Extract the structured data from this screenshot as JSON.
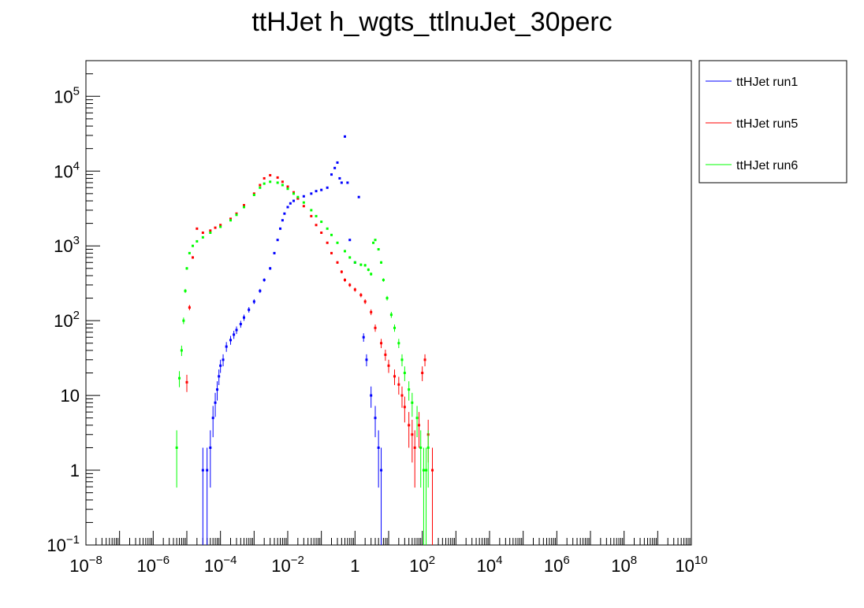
{
  "chart_data": {
    "type": "scatter",
    "title": "ttHJet h_wgts_ttlnuJet_30perc",
    "xlabel": "",
    "ylabel": "",
    "x_scale": "log",
    "y_scale": "log",
    "xlim": [
      1e-08,
      10000000000.0
    ],
    "ylim": [
      0.1,
      300000
    ],
    "grid": false,
    "legend_position": "top-right outside",
    "x_ticks": [
      {
        "base": "10",
        "exp": "−8"
      },
      {
        "base": "10",
        "exp": "−6"
      },
      {
        "base": "10",
        "exp": "−4"
      },
      {
        "base": "10",
        "exp": "−2"
      },
      {
        "base": "1",
        "exp": ""
      },
      {
        "base": "10",
        "exp": "2"
      },
      {
        "base": "10",
        "exp": "4"
      },
      {
        "base": "10",
        "exp": "6"
      },
      {
        "base": "10",
        "exp": "8"
      },
      {
        "base": "10",
        "exp": "10"
      }
    ],
    "y_ticks": [
      {
        "base": "10",
        "exp": "−1"
      },
      {
        "base": "1",
        "exp": ""
      },
      {
        "base": "10",
        "exp": ""
      },
      {
        "base": "10",
        "exp": "2"
      },
      {
        "base": "10",
        "exp": "3"
      },
      {
        "base": "10",
        "exp": "4"
      },
      {
        "base": "10",
        "exp": "5"
      }
    ],
    "series": [
      {
        "name": "ttHJet run1",
        "color": "#0000ff",
        "points": [
          [
            3e-05,
            1
          ],
          [
            4e-05,
            1
          ],
          [
            5e-05,
            2
          ],
          [
            6e-05,
            5
          ],
          [
            7e-05,
            8
          ],
          [
            8e-05,
            12
          ],
          [
            9e-05,
            18
          ],
          [
            0.0001,
            25
          ],
          [
            0.00012,
            30
          ],
          [
            0.00015,
            45
          ],
          [
            0.0002,
            55
          ],
          [
            0.00025,
            65
          ],
          [
            0.0003,
            75
          ],
          [
            0.0004,
            90
          ],
          [
            0.0005,
            110
          ],
          [
            0.0007,
            140
          ],
          [
            0.001,
            180
          ],
          [
            0.0015,
            250
          ],
          [
            0.002,
            350
          ],
          [
            0.003,
            500
          ],
          [
            0.004,
            800
          ],
          [
            0.005,
            1200
          ],
          [
            0.006,
            1700
          ],
          [
            0.007,
            2200
          ],
          [
            0.008,
            2700
          ],
          [
            0.01,
            3300
          ],
          [
            0.012,
            3700
          ],
          [
            0.015,
            4000
          ],
          [
            0.02,
            4300
          ],
          [
            0.03,
            4600
          ],
          [
            0.05,
            5000
          ],
          [
            0.07,
            5400
          ],
          [
            0.1,
            5600
          ],
          [
            0.15,
            6000
          ],
          [
            0.2,
            9000
          ],
          [
            0.25,
            11000
          ],
          [
            0.3,
            13000
          ],
          [
            0.35,
            8000
          ],
          [
            0.4,
            7000
          ],
          [
            0.5,
            29000
          ],
          [
            0.6,
            7000
          ],
          [
            0.7,
            1200
          ],
          [
            1,
            600
          ],
          [
            1.3,
            4500
          ],
          [
            1.8,
            60
          ],
          [
            2.2,
            30
          ],
          [
            3,
            10
          ],
          [
            4,
            5
          ],
          [
            5,
            2
          ],
          [
            6,
            1
          ]
        ]
      },
      {
        "name": "ttHJet run5",
        "color": "#ff0000",
        "points": [
          [
            1e-05,
            15
          ],
          [
            1.2e-05,
            150
          ],
          [
            1.5e-05,
            700
          ],
          [
            2e-05,
            1700
          ],
          [
            3e-05,
            1500
          ],
          [
            5e-05,
            1600
          ],
          [
            7e-05,
            1750
          ],
          [
            0.0001,
            1900
          ],
          [
            0.0002,
            2300
          ],
          [
            0.0003,
            2700
          ],
          [
            0.0005,
            3500
          ],
          [
            0.001,
            5000
          ],
          [
            0.0015,
            6500
          ],
          [
            0.002,
            8000
          ],
          [
            0.003,
            8800
          ],
          [
            0.005,
            8200
          ],
          [
            0.007,
            7200
          ],
          [
            0.01,
            6200
          ],
          [
            0.015,
            5200
          ],
          [
            0.02,
            4300
          ],
          [
            0.03,
            3400
          ],
          [
            0.05,
            2500
          ],
          [
            0.07,
            1900
          ],
          [
            0.1,
            1500
          ],
          [
            0.15,
            1100
          ],
          [
            0.2,
            800
          ],
          [
            0.3,
            600
          ],
          [
            0.4,
            450
          ],
          [
            0.5,
            350
          ],
          [
            0.7,
            300
          ],
          [
            1,
            260
          ],
          [
            1.5,
            220
          ],
          [
            2,
            180
          ],
          [
            3,
            130
          ],
          [
            4,
            80
          ],
          [
            6,
            50
          ],
          [
            8,
            35
          ],
          [
            10,
            25
          ],
          [
            15,
            18
          ],
          [
            20,
            14
          ],
          [
            25,
            10
          ],
          [
            30,
            7
          ],
          [
            40,
            4
          ],
          [
            50,
            3
          ],
          [
            60,
            2
          ],
          [
            80,
            4
          ],
          [
            100,
            20
          ],
          [
            120,
            30
          ],
          [
            150,
            3
          ],
          [
            200,
            1
          ]
        ]
      },
      {
        "name": "ttHJet run6",
        "color": "#00ff00",
        "points": [
          [
            5e-06,
            2
          ],
          [
            6e-06,
            17
          ],
          [
            7e-06,
            40
          ],
          [
            8e-06,
            100
          ],
          [
            9e-06,
            250
          ],
          [
            1e-05,
            500
          ],
          [
            1.2e-05,
            800
          ],
          [
            1.5e-05,
            1000
          ],
          [
            2e-05,
            1150
          ],
          [
            3e-05,
            1300
          ],
          [
            5e-05,
            1500
          ],
          [
            0.0001,
            1800
          ],
          [
            0.0002,
            2200
          ],
          [
            0.0003,
            2600
          ],
          [
            0.0005,
            3300
          ],
          [
            0.001,
            4800
          ],
          [
            0.0015,
            6000
          ],
          [
            0.002,
            6800
          ],
          [
            0.003,
            7200
          ],
          [
            0.005,
            7000
          ],
          [
            0.007,
            6500
          ],
          [
            0.01,
            5800
          ],
          [
            0.015,
            5000
          ],
          [
            0.02,
            4500
          ],
          [
            0.03,
            3800
          ],
          [
            0.05,
            3000
          ],
          [
            0.07,
            2500
          ],
          [
            0.1,
            2100
          ],
          [
            0.15,
            1700
          ],
          [
            0.2,
            1400
          ],
          [
            0.3,
            1100
          ],
          [
            0.5,
            850
          ],
          [
            0.7,
            700
          ],
          [
            1,
            600
          ],
          [
            1.5,
            560
          ],
          [
            2,
            550
          ],
          [
            2.5,
            480
          ],
          [
            3,
            420
          ],
          [
            3.5,
            1100
          ],
          [
            4,
            1200
          ],
          [
            5,
            900
          ],
          [
            6,
            600
          ],
          [
            7,
            350
          ],
          [
            9,
            200
          ],
          [
            12,
            120
          ],
          [
            15,
            80
          ],
          [
            20,
            50
          ],
          [
            25,
            30
          ],
          [
            30,
            20
          ],
          [
            40,
            12
          ],
          [
            50,
            8
          ],
          [
            70,
            5
          ],
          [
            90,
            2
          ],
          [
            110,
            1
          ],
          [
            130,
            1
          ],
          [
            150,
            2
          ]
        ]
      }
    ]
  }
}
